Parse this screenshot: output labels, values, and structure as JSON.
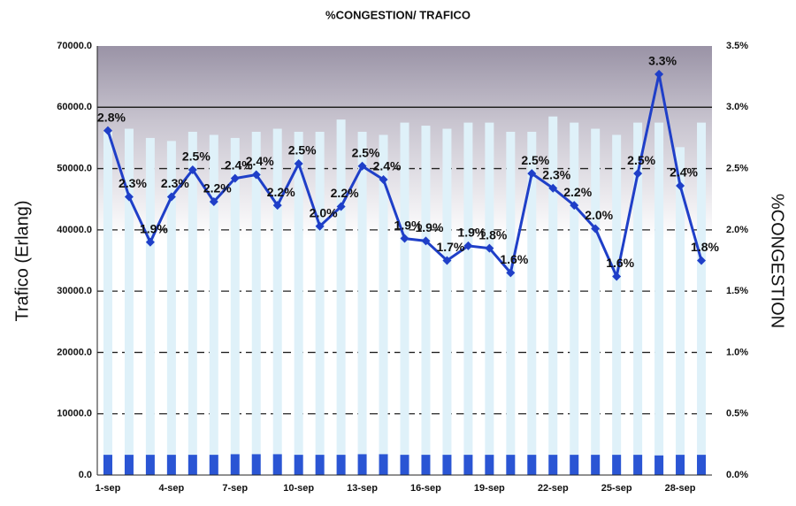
{
  "chart_data": {
    "type": "bar-line",
    "title": "%CONGESTION/ TRAFICO",
    "y_label": "Trafico (Erlang)",
    "y2_label": "%CONGESTION",
    "categories": [
      "1-sep",
      null,
      null,
      "4-sep",
      null,
      null,
      "7-sep",
      null,
      null,
      "10-sep",
      null,
      null,
      "13-sep",
      null,
      null,
      "16-sep",
      null,
      null,
      "19-sep",
      null,
      null,
      "22-sep",
      null,
      null,
      "25-sep",
      null,
      null,
      "28-sep",
      null
    ],
    "series": [
      {
        "type": "bar",
        "color": "#dff1f9",
        "values": [
          56000,
          56500,
          55000,
          54500,
          56000,
          55500,
          55000,
          56000,
          56500,
          56000,
          56000,
          58000,
          56000,
          55500,
          57500,
          57000,
          56500,
          57500,
          57500,
          56000,
          56000,
          58500,
          57500,
          56500,
          55500,
          57500,
          57500,
          53500,
          57500
        ]
      },
      {
        "type": "bar",
        "color": "#2a55d4",
        "values": [
          3300,
          3300,
          3300,
          3300,
          3300,
          3300,
          3400,
          3400,
          3400,
          3300,
          3300,
          3300,
          3400,
          3400,
          3300,
          3300,
          3300,
          3300,
          3300,
          3300,
          3300,
          3300,
          3300,
          3300,
          3300,
          3300,
          3200,
          3300,
          3300
        ]
      },
      {
        "type": "line",
        "axis": "y2",
        "color": "#1f3fc8",
        "values": [
          2.81,
          2.27,
          1.9,
          2.27,
          2.49,
          2.23,
          2.42,
          2.45,
          2.2,
          2.54,
          2.03,
          2.19,
          2.52,
          2.41,
          1.93,
          1.91,
          1.75,
          1.87,
          1.85,
          1.65,
          2.46,
          2.34,
          2.2,
          2.01,
          1.62,
          2.46,
          3.27,
          2.36,
          1.75
        ],
        "value_labels": [
          "2.8%",
          "2.3%",
          "1.9%",
          "2.3%",
          "2.5%",
          "2.2%",
          "2.4%",
          "2.4%",
          "2.2%",
          "2.5%",
          "2.0%",
          "2.2%",
          "2.5%",
          "2.4%",
          "1.9%",
          "1.9%",
          "1.7%",
          "1.9%",
          "1.8%",
          "1.6%",
          "2.5%",
          "2.3%",
          "2.2%",
          "2.0%",
          "1.6%",
          "2.5%",
          "3.3%",
          "2.4%",
          "1.8%"
        ]
      }
    ],
    "ylim": [
      0,
      70000
    ],
    "yticks": [
      {
        "value": 0,
        "label": "0.0"
      },
      {
        "value": 10000,
        "label": "10000.0"
      },
      {
        "value": 20000,
        "label": "20000.0"
      },
      {
        "value": 30000,
        "label": "30000.0"
      },
      {
        "value": 40000,
        "label": "40000.0"
      },
      {
        "value": 50000,
        "label": "50000.0"
      },
      {
        "value": 60000,
        "label": "60000.0"
      },
      {
        "value": 70000,
        "label": "70000.0"
      }
    ],
    "y2lim": [
      0,
      3.5
    ],
    "y2ticks": [
      {
        "value": 0,
        "label": "0.0%"
      },
      {
        "value": 0.5,
        "label": "0.5%"
      },
      {
        "value": 1,
        "label": "1.0%"
      },
      {
        "value": 1.5,
        "label": "1.5%"
      },
      {
        "value": 2,
        "label": "2.0%"
      },
      {
        "value": 2.5,
        "label": "2.5%"
      },
      {
        "value": 3,
        "label": "3.0%"
      },
      {
        "value": 3.5,
        "label": "3.5%"
      }
    ],
    "grid": true
  }
}
